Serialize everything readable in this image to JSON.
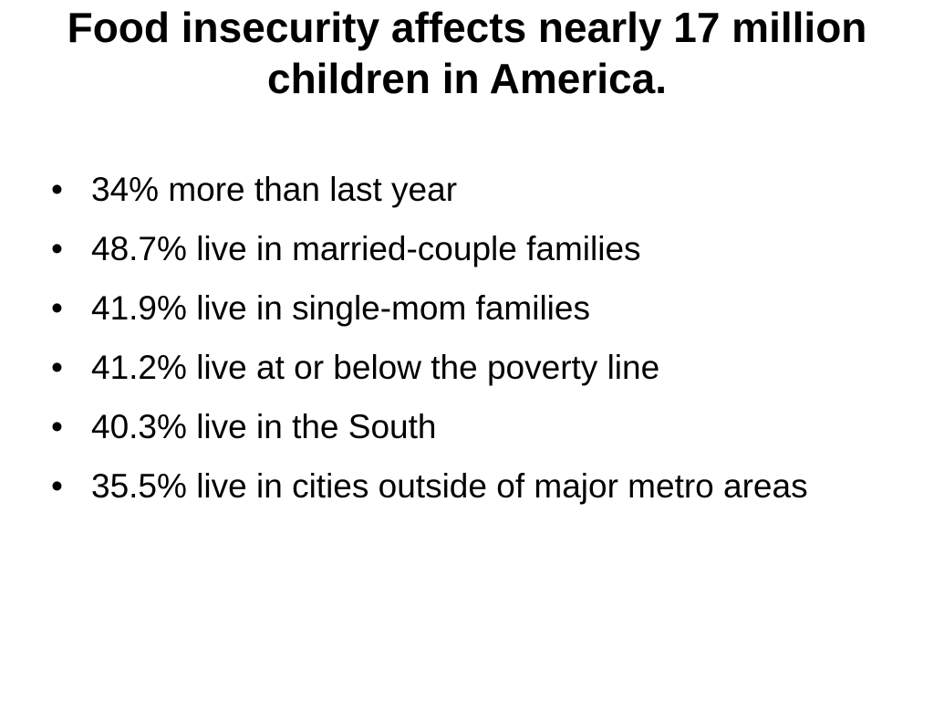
{
  "slide": {
    "title": "Food insecurity affects nearly 17 million children in America.",
    "bullet_marker": "•",
    "bullets": [
      "34% more than last year",
      "48.7% live in married-couple families",
      "41.9% live in single-mom families",
      "41.2% live at or below the poverty line",
      "40.3% live in the South",
      "35.5% live in cities outside of major metro areas"
    ]
  }
}
